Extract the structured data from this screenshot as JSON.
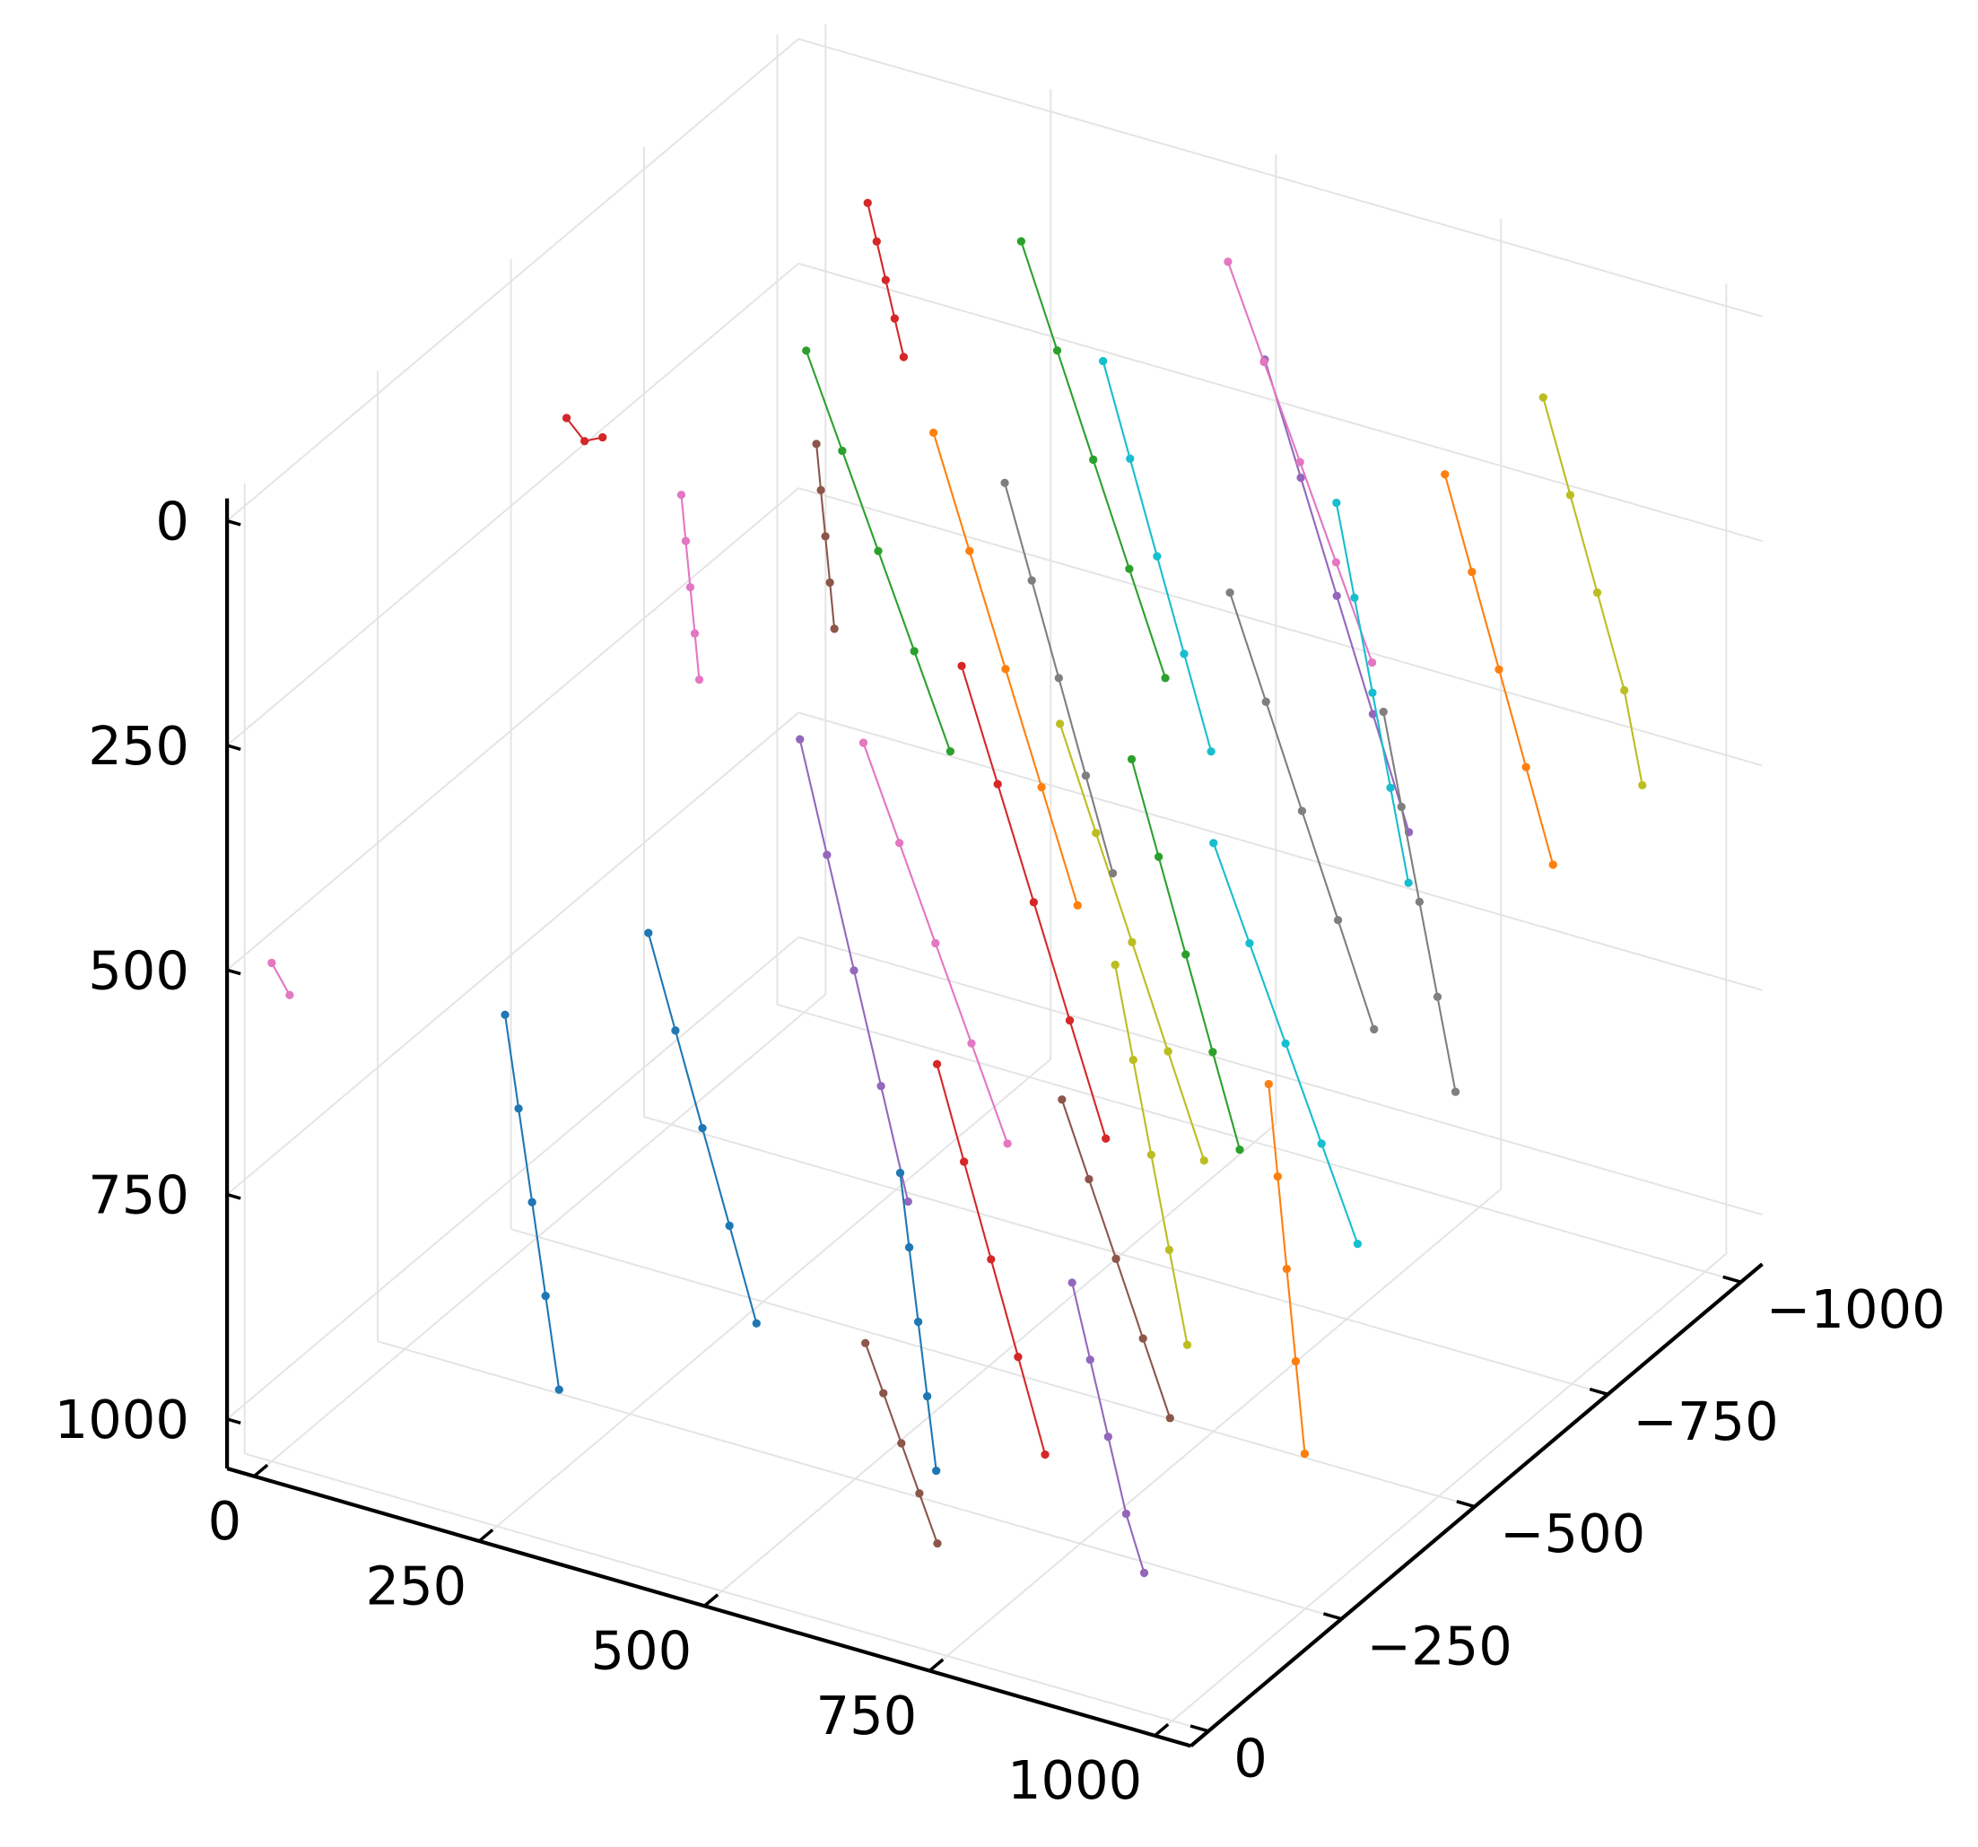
{
  "chart_data": {
    "type": "scatter3d",
    "xlim": [
      -30,
      1040
    ],
    "ylim": [
      -1040,
      33
    ],
    "zlim": [
      -25,
      1055
    ],
    "zflip": true,
    "grid": true,
    "xticks": [
      0,
      250,
      500,
      750,
      1000
    ],
    "yticks": [
      {
        "value": -1000,
        "label": "−1000"
      },
      {
        "value": -750,
        "label": "−750"
      },
      {
        "value": -500,
        "label": "−500"
      },
      {
        "value": -250,
        "label": "−250"
      },
      0
    ],
    "zticks": [
      0,
      250,
      500,
      750,
      1000
    ],
    "series": [
      {
        "color": "#1f77b4",
        "x": [
          300,
          330,
          360,
          390,
          420
        ],
        "y": [
          -200,
          -200,
          -200,
          -200,
          -200
        ],
        "z": [
          480,
          580,
          680,
          780,
          880
        ]
      },
      {
        "color": "#ff7f0e",
        "x": [
          380,
          420,
          460,
          500,
          540
        ],
        "y": [
          -600,
          -600,
          -600,
          -600,
          -600
        ],
        "z": [
          100,
          220,
          340,
          460,
          580
        ]
      },
      {
        "color": "#2ca02c",
        "x": [
          150,
          190,
          230,
          270,
          310
        ],
        "y": [
          -750,
          -750,
          -750,
          -750,
          -750
        ],
        "z": [
          150,
          250,
          350,
          450,
          550
        ]
      },
      {
        "color": "#d62728",
        "x": [
          500,
          540,
          580,
          620,
          660
        ],
        "y": [
          -450,
          -450,
          -450,
          -450,
          -450
        ],
        "z": [
          250,
          370,
          490,
          610,
          730
        ]
      },
      {
        "color": "#9467bd",
        "x": [
          600,
          640,
          680,
          720,
          760
        ],
        "y": [
          -850,
          -850,
          -850,
          -850,
          -850
        ],
        "z": [
          80,
          200,
          320,
          440,
          560
        ]
      },
      {
        "color": "#8c564b",
        "x": [
          700,
          730,
          760,
          790,
          820
        ],
        "y": [
          -300,
          -300,
          -300,
          -300,
          -300
        ],
        "z": [
          600,
          680,
          760,
          840,
          920
        ]
      },
      {
        "color": "#e377c2",
        "x": [
          450,
          490,
          530,
          570,
          610
        ],
        "y": [
          -350,
          -350,
          -350,
          -350,
          -350
        ],
        "z": [
          300,
          400,
          500,
          600,
          700
        ]
      },
      {
        "color": "#7f7f7f",
        "x": [
          650,
          690,
          730,
          770,
          810
        ],
        "y": [
          -700,
          -700,
          -700,
          -700,
          -700
        ],
        "z": [
          250,
          360,
          470,
          580,
          690
        ]
      },
      {
        "color": "#bcbd22",
        "x": [
          550,
          590,
          630,
          670,
          710
        ],
        "y": [
          -550,
          -550,
          -550,
          -550,
          -550
        ],
        "z": [
          350,
          460,
          570,
          680,
          790
        ]
      },
      {
        "color": "#17becf",
        "x": [
          750,
          790,
          830,
          870,
          910
        ],
        "y": [
          -500,
          -500,
          -500,
          -500,
          -500
        ],
        "z": [
          400,
          500,
          600,
          700,
          800
        ]
      },
      {
        "color": "#1f77b4",
        "x": [
          200,
          215,
          230,
          245,
          260
        ],
        "y": [
          -100,
          -100,
          -100,
          -100,
          -100
        ],
        "z": [
          550,
          650,
          750,
          850,
          950
        ]
      },
      {
        "color": "#ff7f0e",
        "x": [
          800,
          830,
          860,
          890,
          920
        ],
        "y": [
          -850,
          -850,
          -850,
          -850,
          -850
        ],
        "z": [
          150,
          250,
          350,
          450,
          550
        ]
      },
      {
        "color": "#2ca02c",
        "x": [
          300,
          340,
          380,
          420,
          460
        ],
        "y": [
          -900,
          -900,
          -900,
          -900,
          -900
        ],
        "z": [
          60,
          170,
          280,
          390,
          500
        ]
      },
      {
        "color": "#d62728",
        "x": [
          650,
          680,
          710,
          740,
          770
        ],
        "y": [
          -150,
          -150,
          -150,
          -150,
          -150
        ],
        "z": [
          500,
          600,
          700,
          800,
          900
        ]
      },
      {
        "color": "#9467bd",
        "x": [
          350,
          380,
          410,
          440,
          470
        ],
        "y": [
          -400,
          -400,
          -400,
          -400,
          -400
        ],
        "z": [
          350,
          470,
          590,
          710,
          830
        ]
      },
      {
        "color": "#8c564b",
        "x": [
          250,
          255,
          260,
          265,
          270
        ],
        "y": [
          -600,
          -600,
          -600,
          -600,
          -600
        ],
        "z": [
          150,
          200,
          250,
          300,
          350
        ]
      },
      {
        "color": "#e377c2",
        "x": [
          500,
          540,
          580,
          620,
          660
        ],
        "y": [
          -950,
          -950,
          -950,
          -950,
          -950
        ],
        "z": [
          50,
          150,
          250,
          350,
          450
        ]
      },
      {
        "color": "#7f7f7f",
        "x": [
          850,
          870,
          890,
          910,
          930
        ],
        "y": [
          -650,
          -650,
          -650,
          -650,
          -650
        ],
        "z": [
          300,
          400,
          500,
          600,
          700
        ]
      },
      {
        "color": "#bcbd22",
        "x": [
          700,
          720,
          740,
          760,
          780
        ],
        "y": [
          -400,
          -400,
          -400,
          -400,
          -400
        ],
        "z": [
          500,
          600,
          700,
          800,
          900
        ]
      },
      {
        "color": "#17becf",
        "x": [
          450,
          480,
          510,
          540,
          570
        ],
        "y": [
          -800,
          -800,
          -800,
          -800,
          -800
        ],
        "z": [
          100,
          200,
          300,
          400,
          500
        ]
      },
      {
        "color": "#1f77b4",
        "x": [
          550,
          560,
          570,
          580,
          590
        ],
        "y": [
          -250,
          -250,
          -250,
          -250,
          -250
        ],
        "z": [
          700,
          780,
          860,
          940,
          1020
        ]
      },
      {
        "color": "#ff7f0e",
        "x": [
          900,
          910,
          920,
          930,
          940
        ],
        "y": [
          -350,
          -350,
          -350,
          -350,
          -350
        ],
        "z": [
          550,
          650,
          750,
          850,
          950
        ]
      },
      {
        "color": "#2ca02c",
        "x": [
          600,
          630,
          660,
          690,
          720
        ],
        "y": [
          -600,
          -600,
          -600,
          -600,
          -600
        ],
        "z": [
          400,
          500,
          600,
          700,
          800
        ]
      },
      {
        "color": "#d62728",
        "x": [
          100,
          110,
          120,
          130,
          140
        ],
        "y": [
          -950,
          -950,
          -950,
          -950,
          -950
        ],
        "z": [
          100,
          140,
          180,
          220,
          260
        ]
      },
      {
        "color": "#9467bd",
        "x": [
          800,
          820,
          840,
          860,
          880
        ],
        "y": [
          -150,
          -150,
          -150,
          -150,
          -150
        ],
        "z": [
          700,
          780,
          860,
          940,
          1000
        ]
      },
      {
        "color": "#8c564b",
        "x": [
          600,
          620,
          640,
          660,
          680
        ],
        "y": [
          -100,
          -100,
          -100,
          -100,
          -100
        ],
        "z": [
          800,
          850,
          900,
          950,
          1000
        ]
      },
      {
        "color": "#e377c2",
        "x": [
          100,
          105,
          110,
          115,
          120
        ],
        "y": [
          -600,
          -600,
          -600,
          -600,
          -600
        ],
        "z": [
          250,
          300,
          350,
          400,
          450
        ]
      },
      {
        "color": "#7f7f7f",
        "x": [
          400,
          430,
          460,
          490,
          520
        ],
        "y": [
          -700,
          -700,
          -700,
          -700,
          -700
        ],
        "z": [
          200,
          300,
          400,
          500,
          600
        ]
      },
      {
        "color": "#bcbd22",
        "x": [
          850,
          880,
          910,
          940,
          960
        ],
        "y": [
          -950,
          -950,
          -950,
          -950,
          -950
        ],
        "z": [
          100,
          200,
          300,
          400,
          500
        ]
      },
      {
        "color": "#17becf",
        "x": [
          650,
          670,
          690,
          710,
          730
        ],
        "y": [
          -900,
          -900,
          -900,
          -900,
          -900
        ],
        "z": [
          250,
          350,
          450,
          550,
          650
        ]
      },
      {
        "color": "#e377c2",
        "x": [
          0,
          20
        ],
        "y": [
          0,
          0
        ],
        "z": [
          500,
          530
        ]
      },
      {
        "color": "#d62728",
        "x": [
          150,
          170,
          190
        ],
        "y": [
          -300,
          -300,
          -300
        ],
        "z": [
          0,
          20,
          10
        ]
      }
    ]
  }
}
